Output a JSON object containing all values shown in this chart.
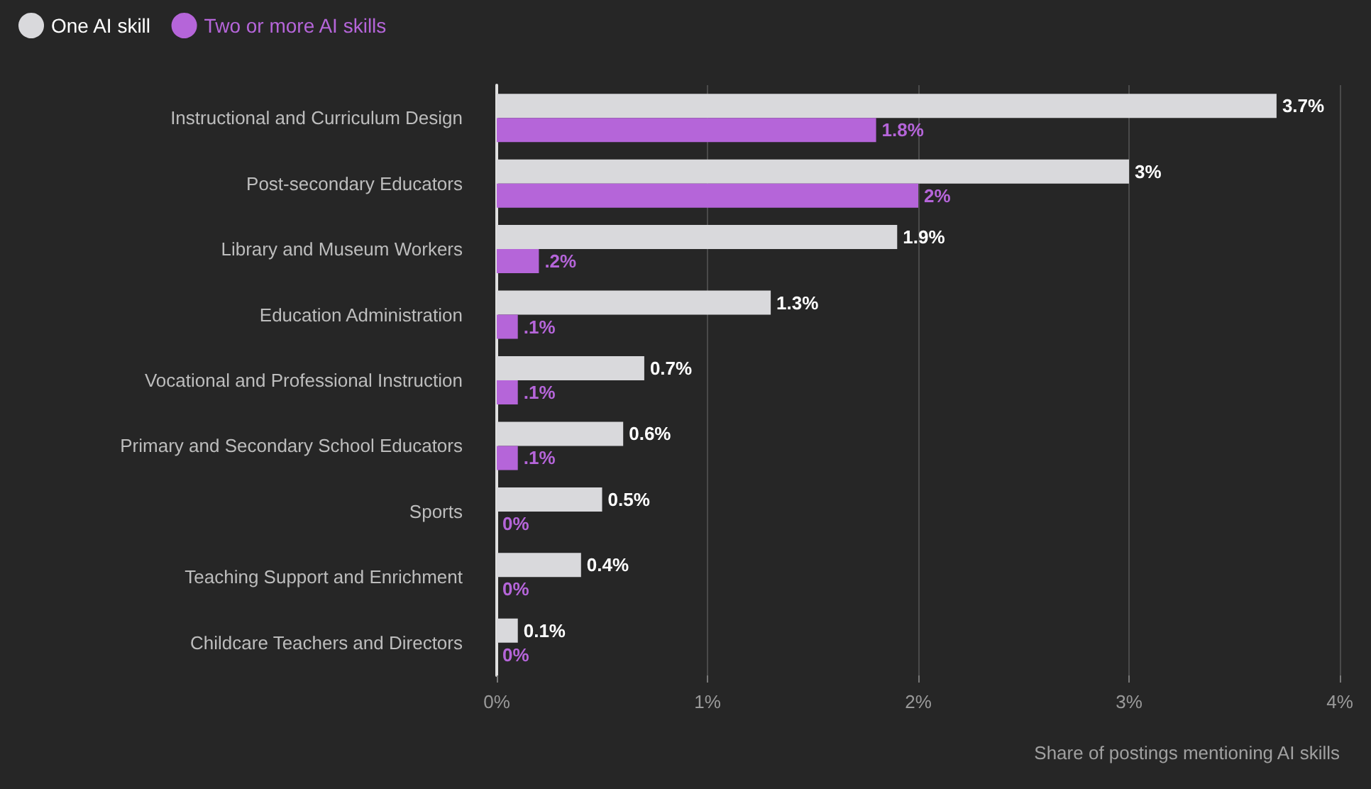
{
  "chart_data": {
    "type": "bar",
    "orientation": "horizontal",
    "xlabel": "Share of postings mentioning AI skills",
    "categories": [
      "Instructional and Curriculum Design",
      "Post-secondary Educators",
      "Library and Museum Workers",
      "Education Administration",
      "Vocational and Professional Instruction",
      "Primary and Secondary School Educators",
      "Sports",
      "Teaching Support and Enrichment",
      "Childcare Teachers and Directors"
    ],
    "series": [
      {
        "name": "One AI skill",
        "color": "#d9d9dc",
        "values": [
          3.7,
          3,
          1.9,
          1.3,
          0.7,
          0.6,
          0.5,
          0.4,
          0.1
        ],
        "value_labels": [
          "3.7%",
          "3%",
          "1.9%",
          "1.3%",
          "0.7%",
          "0.6%",
          "0.5%",
          "0.4%",
          "0.1%"
        ]
      },
      {
        "name": "Two or more AI skills",
        "color": "#b565d9",
        "values": [
          1.8,
          2,
          0.2,
          0.1,
          0.1,
          0.1,
          0,
          0,
          0
        ],
        "value_labels": [
          "1.8%",
          "2%",
          ".2%",
          ".1%",
          ".1%",
          ".1%",
          "0%",
          "0%",
          "0%"
        ]
      }
    ],
    "xlim": [
      0,
      4
    ],
    "xticks": [
      {
        "value": 0,
        "label": "0%"
      },
      {
        "value": 1,
        "label": "1%"
      },
      {
        "value": 2,
        "label": "2%"
      },
      {
        "value": 3,
        "label": "3%"
      },
      {
        "value": 4,
        "label": "4%"
      }
    ],
    "grid": "x",
    "legend": "top left"
  }
}
